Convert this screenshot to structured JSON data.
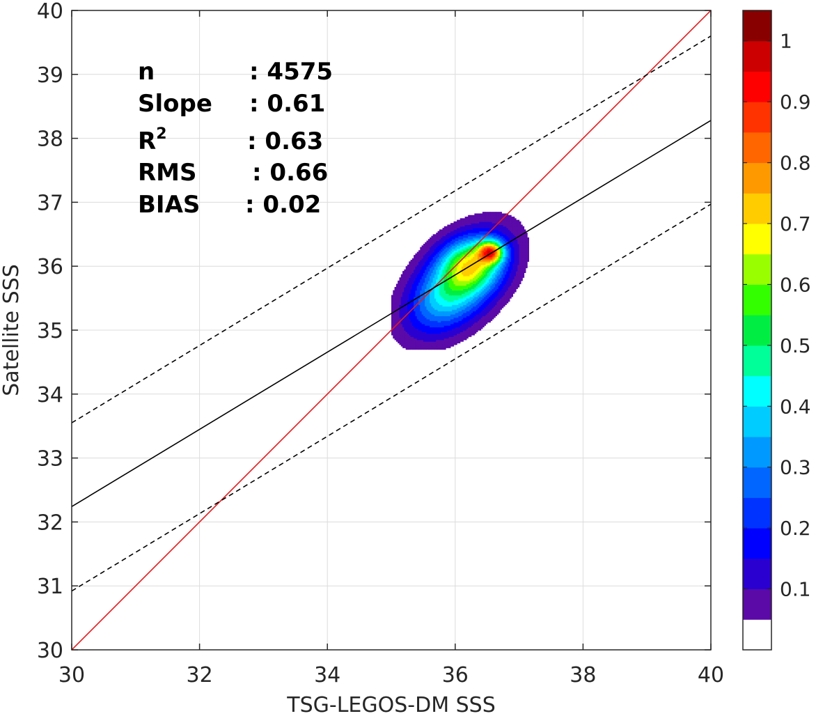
{
  "chart_data": {
    "type": "contour",
    "xlabel": "TSG-LEGOS-DM SSS",
    "ylabel": "Satellite SSS",
    "xlim": [
      30,
      40
    ],
    "ylim": [
      30,
      40
    ],
    "x_ticks": [
      "30",
      "32",
      "34",
      "36",
      "38",
      "40"
    ],
    "y_ticks": [
      "30",
      "31",
      "32",
      "33",
      "34",
      "35",
      "36",
      "37",
      "38",
      "39",
      "40"
    ],
    "grid": true,
    "stats": [
      {
        "name": "n",
        "value": ": 4575"
      },
      {
        "name": "Slope",
        "value": ": 0.61"
      },
      {
        "name": "R",
        "sup": "2",
        "value": ": 0.63"
      },
      {
        "name": "RMS",
        "value": ": 0.66"
      },
      {
        "name": "BIAS",
        "value": ": 0.02"
      }
    ],
    "lines": [
      {
        "kind": "identity",
        "color": "#e41a1c",
        "style": "solid",
        "points": [
          [
            30,
            30
          ],
          [
            40,
            40
          ]
        ]
      },
      {
        "kind": "regression",
        "color": "#000000",
        "style": "solid",
        "points": [
          [
            30,
            32.24
          ],
          [
            40,
            38.28
          ]
        ]
      },
      {
        "kind": "upper-bound",
        "color": "#000000",
        "style": "dashed",
        "points": [
          [
            30,
            33.55
          ],
          [
            40,
            39.6
          ]
        ]
      },
      {
        "kind": "lower-bound",
        "color": "#000000",
        "style": "dashed",
        "points": [
          [
            30,
            30.92
          ],
          [
            40,
            36.97
          ]
        ]
      }
    ],
    "density_peak": {
      "x": 36.56,
      "y": 36.23
    },
    "contour_levels": [
      0.05,
      0.1,
      0.15,
      0.2,
      0.25,
      0.3,
      0.35,
      0.4,
      0.45,
      0.5,
      0.55,
      0.6,
      0.65,
      0.7,
      0.75,
      0.8,
      0.85,
      0.9,
      0.95,
      1.0
    ],
    "colorbar": {
      "ticks": [
        "0.1",
        "0.2",
        "0.3",
        "0.4",
        "0.5",
        "0.6",
        "0.7",
        "0.8",
        "0.9",
        "1"
      ],
      "colors": [
        "#ffffff",
        "#5b0aa8",
        "#2a00d0",
        "#0000ff",
        "#0033ff",
        "#0066ff",
        "#0099ff",
        "#00ccff",
        "#00ffff",
        "#00ff99",
        "#00ee44",
        "#33ff00",
        "#99ff00",
        "#ffff00",
        "#ffcc00",
        "#ff9900",
        "#ff6600",
        "#ff3300",
        "#ff0000",
        "#cc0000",
        "#880000"
      ]
    }
  }
}
